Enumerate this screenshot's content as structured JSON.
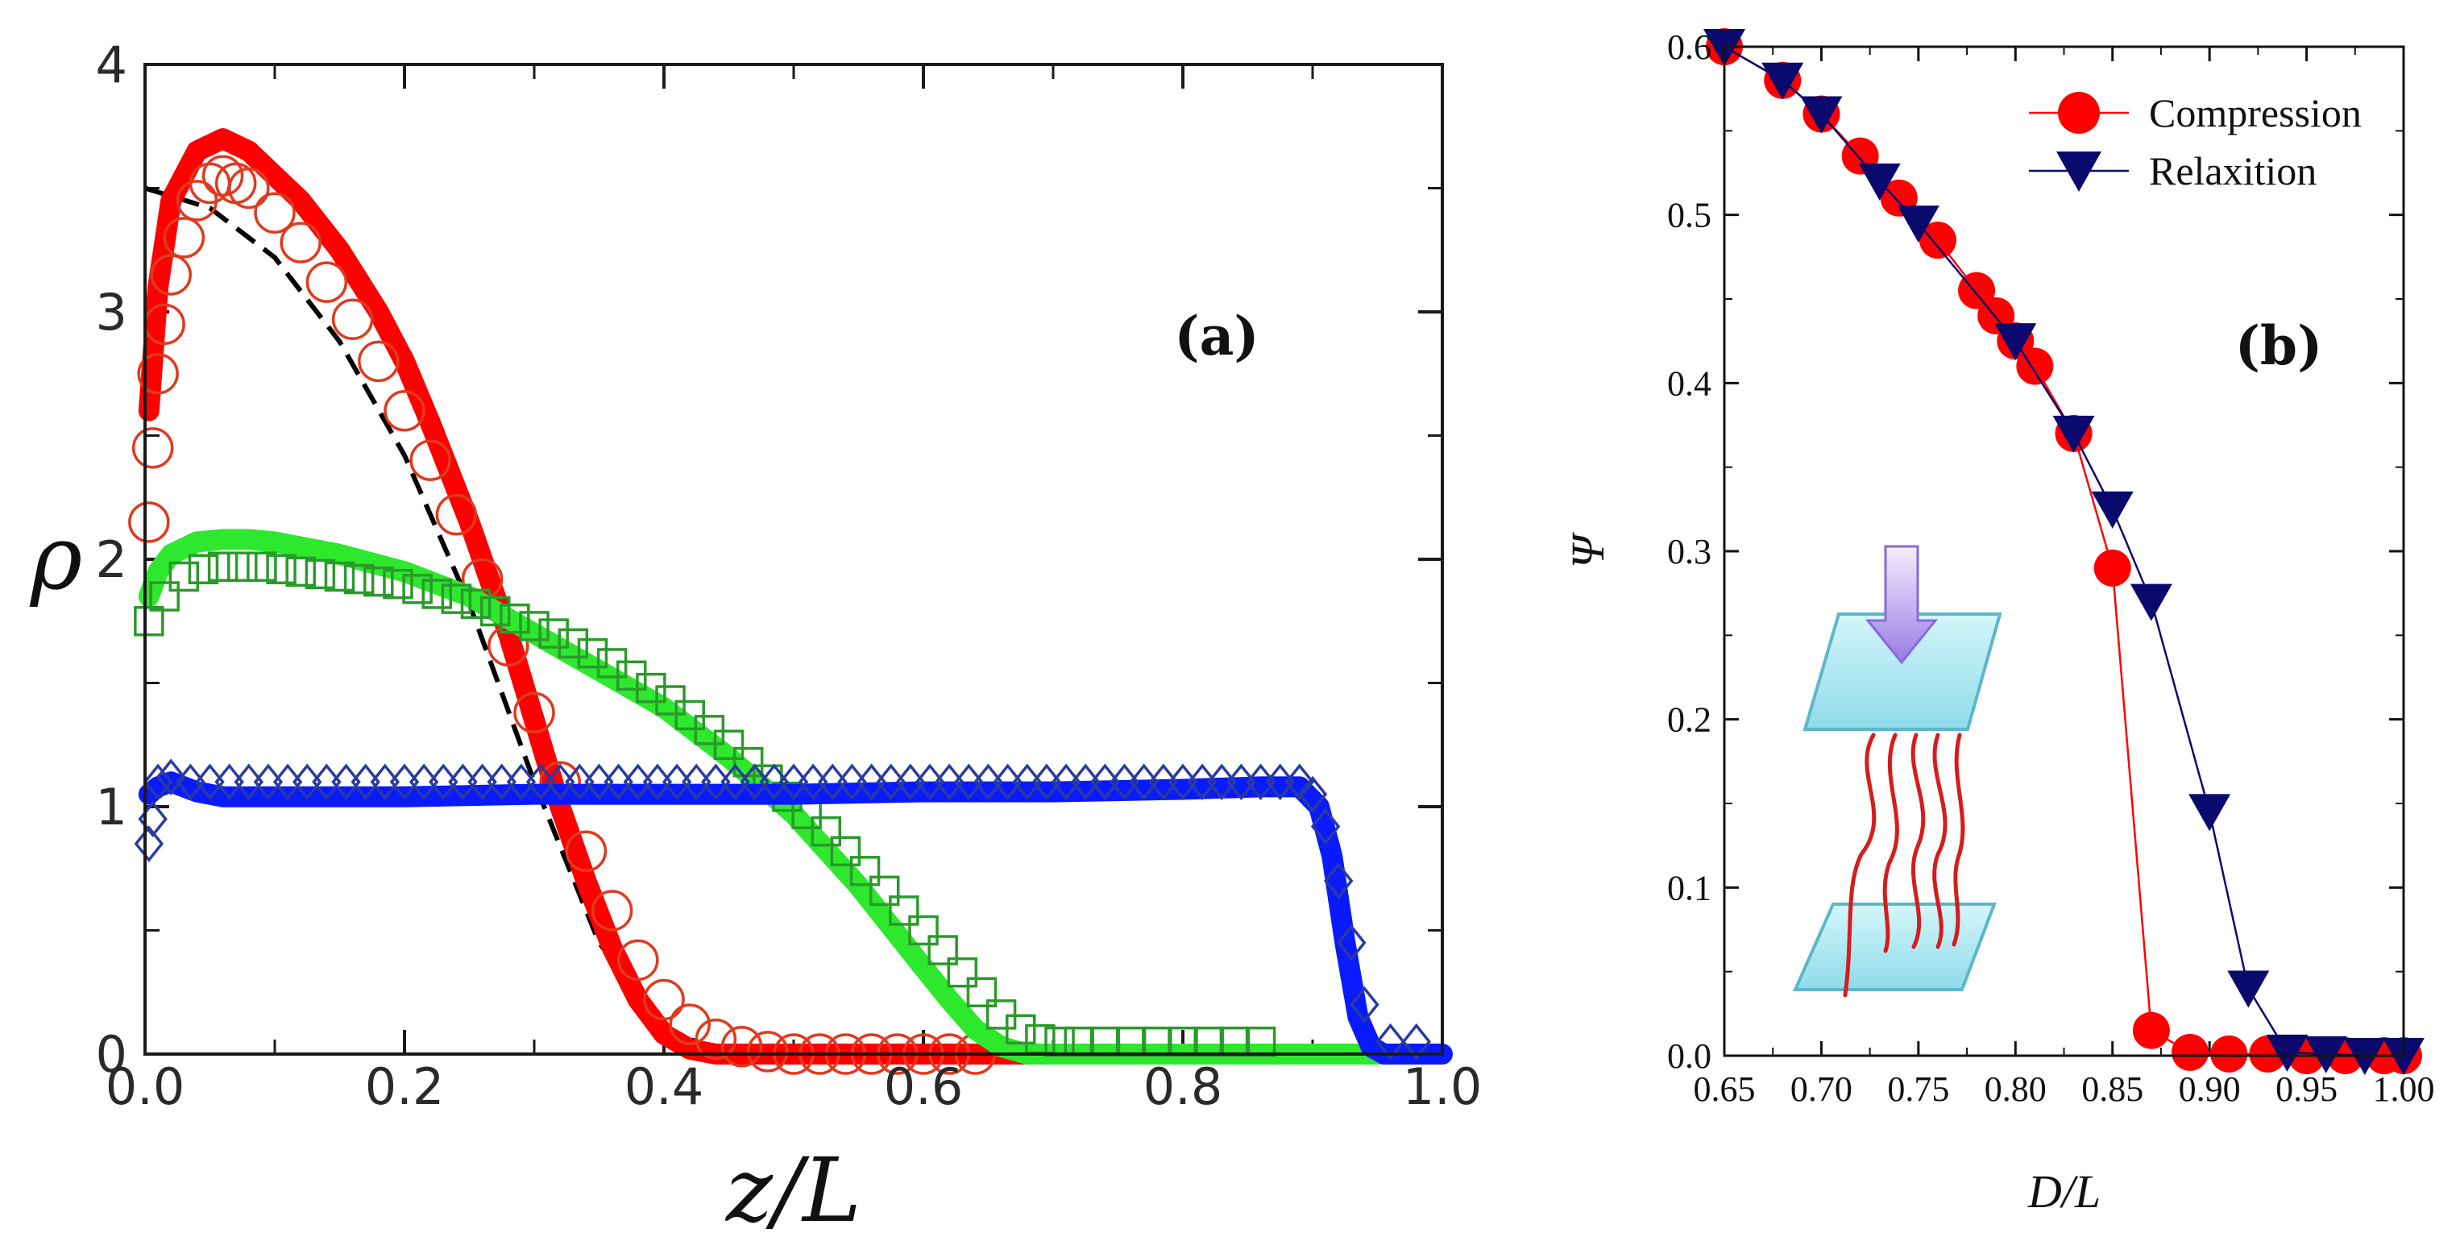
{
  "chart_data": [
    {
      "type": "line",
      "panel_label": "(a)",
      "xlabel": "z/L",
      "ylabel": "ρ",
      "xlim": [
        0.0,
        1.0
      ],
      "ylim": [
        0,
        4
      ],
      "xticks": [
        "0.0",
        "0.2",
        "0.4",
        "0.6",
        "0.8",
        "1.0"
      ],
      "yticks": [
        "0",
        "1",
        "2",
        "3",
        "4"
      ],
      "series": [
        {
          "name": "reference curve",
          "color": "#000000",
          "style": "dashed",
          "x": [
            0.0,
            0.05,
            0.1,
            0.15,
            0.2,
            0.25,
            0.3,
            0.35,
            0.4,
            0.45
          ],
          "y": [
            3.5,
            3.42,
            3.22,
            2.88,
            2.42,
            1.82,
            1.1,
            0.45,
            0.1,
            0.0
          ]
        },
        {
          "name": "solid red",
          "color": "#ff0000",
          "style": "solid",
          "x": [
            0.003,
            0.01,
            0.02,
            0.04,
            0.06,
            0.08,
            0.1,
            0.12,
            0.15,
            0.18,
            0.2,
            0.22,
            0.25,
            0.28,
            0.3,
            0.32,
            0.34,
            0.36,
            0.38,
            0.4,
            0.42,
            0.44,
            0.46,
            0.5,
            0.6,
            0.7,
            0.8,
            0.9,
            0.97
          ],
          "y": [
            2.6,
            3.1,
            3.45,
            3.65,
            3.7,
            3.65,
            3.55,
            3.45,
            3.25,
            3.0,
            2.8,
            2.55,
            2.15,
            1.7,
            1.35,
            1.0,
            0.7,
            0.43,
            0.22,
            0.08,
            0.02,
            0.0,
            0.0,
            0.0,
            0.0,
            0.0,
            0.0,
            0.0,
            0.0
          ]
        },
        {
          "name": "red circles",
          "color": "#e03a1e",
          "marker": "circle",
          "x": [
            0.003,
            0.006,
            0.01,
            0.015,
            0.02,
            0.03,
            0.04,
            0.05,
            0.06,
            0.07,
            0.08,
            0.1,
            0.12,
            0.14,
            0.16,
            0.18,
            0.2,
            0.22,
            0.24,
            0.26,
            0.28,
            0.3,
            0.32,
            0.34,
            0.36,
            0.38,
            0.4,
            0.42,
            0.44,
            0.46,
            0.48,
            0.5,
            0.52,
            0.54,
            0.56,
            0.58,
            0.6,
            0.62,
            0.64
          ],
          "y": [
            2.15,
            2.45,
            2.75,
            2.95,
            3.15,
            3.3,
            3.45,
            3.52,
            3.55,
            3.52,
            3.5,
            3.4,
            3.28,
            3.12,
            2.97,
            2.8,
            2.6,
            2.4,
            2.18,
            1.92,
            1.65,
            1.38,
            1.1,
            0.82,
            0.58,
            0.38,
            0.22,
            0.12,
            0.06,
            0.03,
            0.01,
            0.0,
            0.0,
            0.0,
            0.0,
            0.0,
            0.0,
            0.0,
            0.0
          ]
        },
        {
          "name": "solid green",
          "color": "#2ee82e",
          "style": "solid",
          "x": [
            0.003,
            0.01,
            0.02,
            0.04,
            0.06,
            0.08,
            0.1,
            0.15,
            0.2,
            0.25,
            0.3,
            0.35,
            0.4,
            0.45,
            0.5,
            0.55,
            0.6,
            0.62,
            0.64,
            0.66,
            0.68,
            0.7,
            0.8,
            0.9,
            0.97
          ],
          "y": [
            1.85,
            1.95,
            2.02,
            2.07,
            2.08,
            2.08,
            2.07,
            2.02,
            1.95,
            1.85,
            1.7,
            1.55,
            1.4,
            1.2,
            0.97,
            0.68,
            0.35,
            0.22,
            0.1,
            0.03,
            0.0,
            0.0,
            0.0,
            0.0,
            0.0
          ]
        },
        {
          "name": "green squares",
          "color": "#2a9a2a",
          "marker": "square",
          "x": [
            0.003,
            0.015,
            0.03,
            0.045,
            0.06,
            0.075,
            0.09,
            0.105,
            0.12,
            0.135,
            0.15,
            0.165,
            0.18,
            0.195,
            0.21,
            0.225,
            0.24,
            0.255,
            0.27,
            0.285,
            0.3,
            0.315,
            0.33,
            0.345,
            0.36,
            0.375,
            0.39,
            0.405,
            0.42,
            0.435,
            0.45,
            0.465,
            0.48,
            0.495,
            0.51,
            0.525,
            0.54,
            0.555,
            0.57,
            0.585,
            0.6,
            0.615,
            0.63,
            0.645,
            0.66,
            0.675,
            0.69,
            0.705,
            0.72,
            0.74,
            0.76,
            0.78,
            0.8,
            0.82,
            0.84,
            0.86
          ],
          "y": [
            1.75,
            1.85,
            1.93,
            1.96,
            1.97,
            1.97,
            1.97,
            1.96,
            1.95,
            1.94,
            1.93,
            1.92,
            1.91,
            1.9,
            1.88,
            1.86,
            1.84,
            1.82,
            1.79,
            1.76,
            1.73,
            1.7,
            1.66,
            1.62,
            1.58,
            1.53,
            1.48,
            1.43,
            1.37,
            1.31,
            1.25,
            1.18,
            1.11,
            1.04,
            0.97,
            0.9,
            0.82,
            0.74,
            0.66,
            0.58,
            0.5,
            0.42,
            0.33,
            0.25,
            0.16,
            0.1,
            0.06,
            0.05,
            0.05,
            0.05,
            0.05,
            0.05,
            0.05,
            0.05,
            0.05,
            0.05
          ]
        },
        {
          "name": "solid blue",
          "color": "#0a1aff",
          "style": "solid",
          "x": [
            0.003,
            0.01,
            0.02,
            0.04,
            0.06,
            0.1,
            0.2,
            0.3,
            0.4,
            0.5,
            0.6,
            0.7,
            0.8,
            0.86,
            0.89,
            0.905,
            0.915,
            0.925,
            0.935,
            0.945,
            0.955,
            0.97,
            1.0
          ],
          "y": [
            1.05,
            1.08,
            1.1,
            1.06,
            1.04,
            1.04,
            1.04,
            1.05,
            1.05,
            1.05,
            1.06,
            1.06,
            1.07,
            1.08,
            1.08,
            1.0,
            0.8,
            0.45,
            0.15,
            0.03,
            0.0,
            0.0,
            0.0
          ]
        },
        {
          "name": "blue diamonds",
          "color": "#2a3aa0",
          "marker": "diamond",
          "x": [
            0.003,
            0.006,
            0.01,
            0.02,
            0.035,
            0.05,
            0.065,
            0.08,
            0.095,
            0.11,
            0.125,
            0.14,
            0.155,
            0.17,
            0.185,
            0.2,
            0.215,
            0.23,
            0.245,
            0.26,
            0.275,
            0.29,
            0.305,
            0.32,
            0.335,
            0.35,
            0.365,
            0.38,
            0.395,
            0.41,
            0.425,
            0.44,
            0.455,
            0.47,
            0.485,
            0.5,
            0.515,
            0.53,
            0.545,
            0.56,
            0.575,
            0.59,
            0.605,
            0.62,
            0.635,
            0.65,
            0.665,
            0.68,
            0.695,
            0.71,
            0.725,
            0.74,
            0.755,
            0.77,
            0.785,
            0.8,
            0.815,
            0.83,
            0.845,
            0.86,
            0.875,
            0.89,
            0.9,
            0.91,
            0.92,
            0.93,
            0.94,
            0.96,
            0.98
          ],
          "y": [
            0.85,
            0.95,
            1.1,
            1.12,
            1.1,
            1.1,
            1.1,
            1.1,
            1.1,
            1.1,
            1.1,
            1.1,
            1.1,
            1.1,
            1.1,
            1.1,
            1.1,
            1.1,
            1.1,
            1.1,
            1.1,
            1.1,
            1.1,
            1.1,
            1.1,
            1.1,
            1.1,
            1.1,
            1.1,
            1.1,
            1.1,
            1.1,
            1.1,
            1.1,
            1.1,
            1.1,
            1.1,
            1.1,
            1.1,
            1.1,
            1.1,
            1.1,
            1.1,
            1.1,
            1.1,
            1.1,
            1.1,
            1.1,
            1.1,
            1.1,
            1.1,
            1.1,
            1.1,
            1.1,
            1.1,
            1.1,
            1.1,
            1.1,
            1.1,
            1.1,
            1.1,
            1.1,
            1.05,
            0.92,
            0.7,
            0.45,
            0.2,
            0.05,
            0.05
          ]
        }
      ]
    },
    {
      "type": "line",
      "panel_label": "(b)",
      "xlabel": "D/L",
      "ylabel": "Ψ",
      "xlim": [
        0.65,
        1.0
      ],
      "ylim": [
        0.0,
        0.6
      ],
      "xticks": [
        "0.65",
        "0.70",
        "0.75",
        "0.80",
        "0.85",
        "0.90",
        "0.95",
        "1.00"
      ],
      "yticks": [
        "0.0",
        "0.1",
        "0.2",
        "0.3",
        "0.4",
        "0.5",
        "0.6"
      ],
      "legend": "top-right",
      "series": [
        {
          "name": "Compression",
          "color": "#ff0000",
          "marker": "circle",
          "x": [
            0.65,
            0.68,
            0.7,
            0.72,
            0.74,
            0.76,
            0.78,
            0.79,
            0.8,
            0.81,
            0.83,
            0.85,
            0.87,
            0.89,
            0.91,
            0.93,
            0.95,
            0.97,
            0.99,
            1.0
          ],
          "y": [
            0.6,
            0.58,
            0.56,
            0.535,
            0.51,
            0.485,
            0.455,
            0.44,
            0.425,
            0.41,
            0.37,
            0.29,
            0.015,
            0.002,
            0.001,
            0.001,
            0.0,
            0.0,
            0.0,
            0.0
          ]
        },
        {
          "name": "Relaxition",
          "color": "#0a0a6e",
          "marker": "triangle-down",
          "x": [
            0.65,
            0.68,
            0.7,
            0.73,
            0.75,
            0.8,
            0.83,
            0.85,
            0.87,
            0.9,
            0.92,
            0.94,
            0.96,
            0.98,
            1.0
          ],
          "y": [
            0.6,
            0.58,
            0.56,
            0.52,
            0.495,
            0.425,
            0.37,
            0.325,
            0.27,
            0.145,
            0.04,
            0.002,
            0.001,
            0.0,
            0.0
          ]
        }
      ]
    }
  ]
}
